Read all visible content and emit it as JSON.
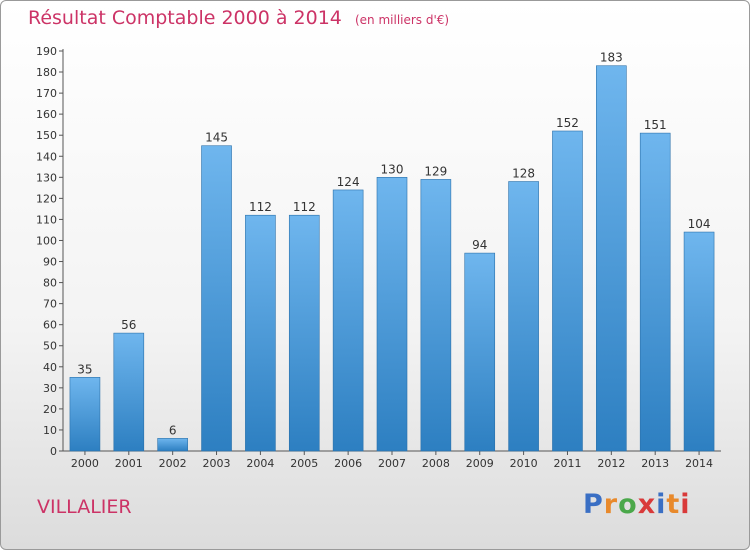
{
  "header": {
    "title": "Résultat Comptable 2000 à 2014",
    "subtitle": "(en milliers d'€)"
  },
  "footer": {
    "city": "VILLALIER",
    "logo_text": "Proxiti"
  },
  "colors": {
    "title": "#cc3366",
    "bar_top": "#6fb6ee",
    "bar_bottom": "#2d7fc1",
    "logo_letters": [
      "#3a6fc4",
      "#e8892b",
      "#4aa84a",
      "#d93a3a",
      "#3a6fc4",
      "#e8892b",
      "#d93a3a"
    ]
  },
  "chart_data": {
    "type": "bar",
    "title": "Résultat Comptable 2000 à 2014",
    "subtitle": "(en milliers d'€)",
    "xlabel": "",
    "ylabel": "",
    "categories": [
      "2000",
      "2001",
      "2002",
      "2003",
      "2004",
      "2005",
      "2006",
      "2007",
      "2008",
      "2009",
      "2010",
      "2011",
      "2012",
      "2013",
      "2014"
    ],
    "values": [
      35,
      56,
      6,
      145,
      112,
      112,
      124,
      130,
      129,
      94,
      128,
      152,
      183,
      151,
      104
    ],
    "ylim": [
      0,
      190
    ],
    "ytick_step": 10,
    "grid": false,
    "data_labels": true
  }
}
